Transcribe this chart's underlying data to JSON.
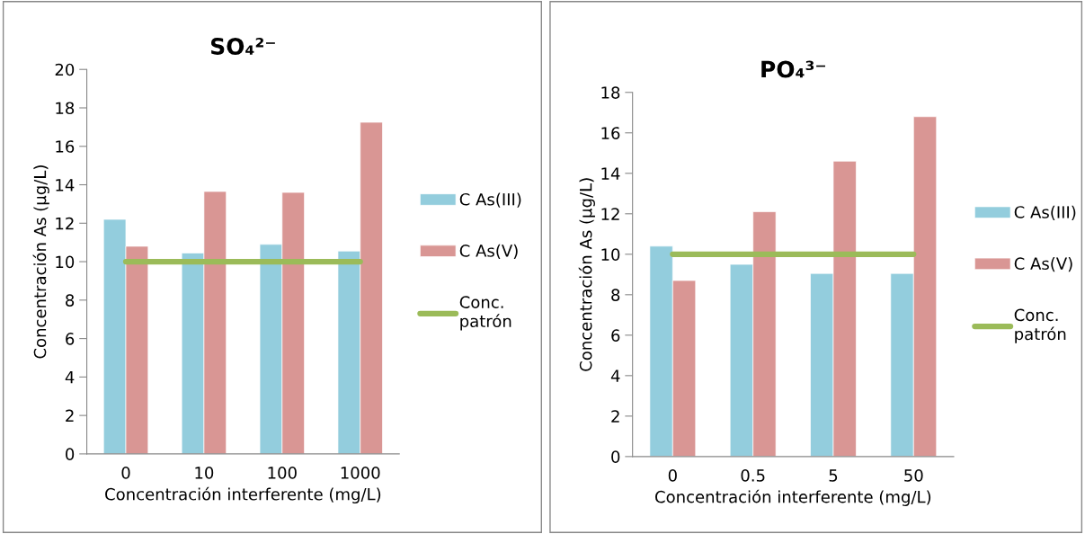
{
  "chart_data": [
    {
      "type": "bar",
      "title": "SO₄²⁻",
      "xlabel": "Concentración interferente (mg/L)",
      "ylabel": "Concentración As (µg/L)",
      "categories": [
        "0",
        "10",
        "100",
        "1000"
      ],
      "ylim": [
        0,
        20
      ],
      "yticks": [
        0,
        2,
        4,
        6,
        8,
        10,
        12,
        14,
        16,
        18,
        20
      ],
      "grid": false,
      "legend": "right",
      "series": [
        {
          "name": "C As(III)",
          "color": "#93cddd",
          "values": [
            12.2,
            10.45,
            10.9,
            10.55
          ]
        },
        {
          "name": "C As(V)",
          "color": "#d99694",
          "values": [
            10.8,
            13.65,
            13.6,
            17.25
          ]
        },
        {
          "name": "Conc. patrón",
          "type": "line",
          "color": "#9bbb59",
          "values": [
            10,
            10,
            10,
            10
          ]
        }
      ]
    },
    {
      "type": "bar",
      "title": "PO₄³⁻",
      "xlabel": "Concentración interferente (mg/L)",
      "ylabel": "Concentración As (µg/L)",
      "categories": [
        "0",
        "0.5",
        "5",
        "50"
      ],
      "ylim": [
        0,
        18
      ],
      "yticks": [
        0,
        2,
        4,
        6,
        8,
        10,
        12,
        14,
        16,
        18
      ],
      "grid": false,
      "legend": "right",
      "series": [
        {
          "name": "C As(III)",
          "color": "#93cddd",
          "values": [
            10.4,
            9.5,
            9.05,
            9.05
          ]
        },
        {
          "name": "C As(V)",
          "color": "#d99694",
          "values": [
            8.7,
            12.1,
            14.6,
            16.8
          ]
        },
        {
          "name": "Conc. patrón",
          "type": "line",
          "color": "#9bbb59",
          "values": [
            10,
            10,
            10,
            10
          ]
        }
      ]
    }
  ]
}
